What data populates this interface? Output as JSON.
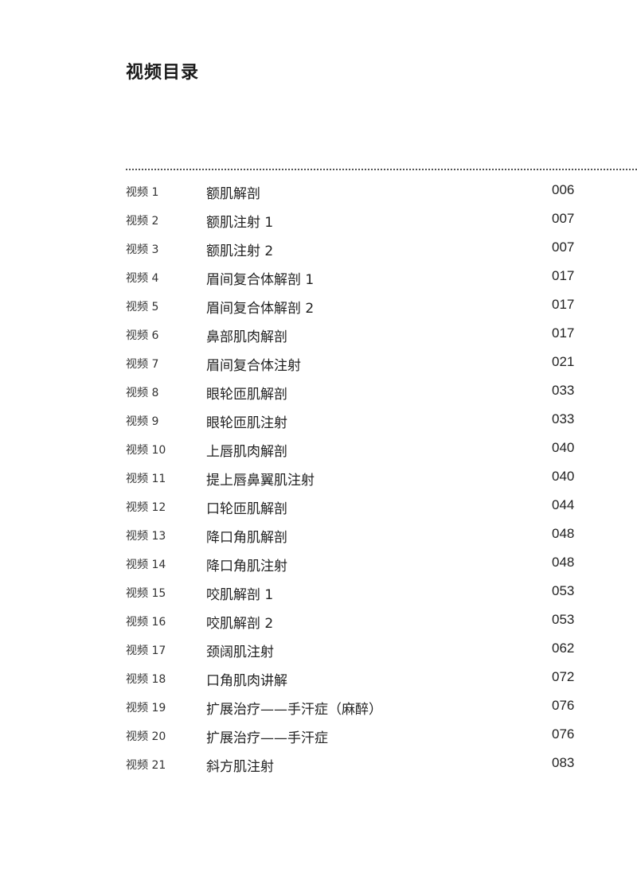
{
  "title": "视频目录",
  "entries": [
    {
      "num": "视频 1",
      "name": "额肌解剖",
      "page": "006"
    },
    {
      "num": "视频 2",
      "name": "额肌注射 1",
      "page": "007"
    },
    {
      "num": "视频 3",
      "name": "额肌注射 2",
      "page": "007"
    },
    {
      "num": "视频 4",
      "name": "眉间复合体解剖 1",
      "page": "017"
    },
    {
      "num": "视频 5",
      "name": "眉间复合体解剖 2",
      "page": "017"
    },
    {
      "num": "视频 6",
      "name": "鼻部肌肉解剖",
      "page": "017"
    },
    {
      "num": "视频 7",
      "name": "眉间复合体注射",
      "page": "021"
    },
    {
      "num": "视频 8",
      "name": "眼轮匝肌解剖",
      "page": "033"
    },
    {
      "num": "视频 9",
      "name": "眼轮匝肌注射",
      "page": "033"
    },
    {
      "num": "视频 10",
      "name": "上唇肌肉解剖",
      "page": "040"
    },
    {
      "num": "视频 11",
      "name": "提上唇鼻翼肌注射",
      "page": "040"
    },
    {
      "num": "视频 12",
      "name": "口轮匝肌解剖",
      "page": "044"
    },
    {
      "num": "视频 13",
      "name": "降口角肌解剖",
      "page": "048"
    },
    {
      "num": "视频 14",
      "name": "降口角肌注射",
      "page": "048"
    },
    {
      "num": "视频 15",
      "name": "咬肌解剖 1",
      "page": "053"
    },
    {
      "num": "视频 16",
      "name": "咬肌解剖 2",
      "page": "053"
    },
    {
      "num": "视频 17",
      "name": "颈阔肌注射",
      "page": "062"
    },
    {
      "num": "视频 18",
      "name": "口角肌肉讲解",
      "page": "072"
    },
    {
      "num": "视频 19",
      "name": "扩展治疗——手汗症（麻醉）",
      "page": "076"
    },
    {
      "num": "视频 20",
      "name": "扩展治疗——手汗症",
      "page": "076"
    },
    {
      "num": "视频 21",
      "name": "斜方肌注射",
      "page": "083"
    }
  ]
}
